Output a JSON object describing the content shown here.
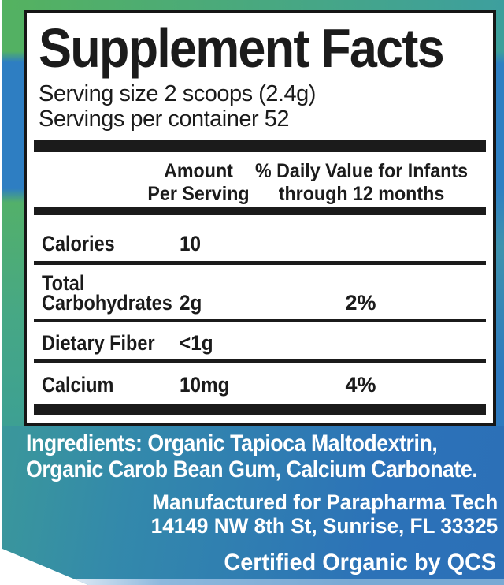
{
  "panel": {
    "title": "Supplement Facts",
    "serving_size": "Serving size 2 scoops (2.4g)",
    "servings_per_container": "Servings per container 52",
    "amount_header_line1": "Amount",
    "amount_header_line2": "Per Serving",
    "dv_header_line1": "% Daily Value for Infants",
    "dv_header_line2": "through 12 months",
    "rows": [
      {
        "label_line1": "Calories",
        "label_line2": "",
        "amount": "10",
        "daily_value": ""
      },
      {
        "label_line1": "Total",
        "label_line2": "Carbohydrates",
        "amount": "2g",
        "daily_value": "2%"
      },
      {
        "label_line1": "Dietary Fiber",
        "label_line2": "",
        "amount": "<1g",
        "daily_value": ""
      },
      {
        "label_line1": "Calcium",
        "label_line2": "",
        "amount": "10mg",
        "daily_value": "4%"
      }
    ]
  },
  "footer": {
    "ingredients_line1": "Ingredients: Organic Tapioca Maltodextrin,",
    "ingredients_line2": "Organic Carob Bean Gum, Calcium Carbonate.",
    "manufactured_line1": "Manufactured for Parapharma Tech",
    "manufactured_line2": "14149 NW 8th St, Sunrise, FL 33325",
    "certified": "Certified Organic by QCS"
  },
  "colors": {
    "label_green": "#53b163",
    "label_teal": "#3da09b",
    "label_blue": "#2e7ec2",
    "footer_teal": "#3fa091",
    "footer_blue": "#2c72b8",
    "bottom_edge_light_blue": "#79a9d4",
    "panel_text": "#1b1b1b",
    "footer_text": "#ffffff"
  }
}
